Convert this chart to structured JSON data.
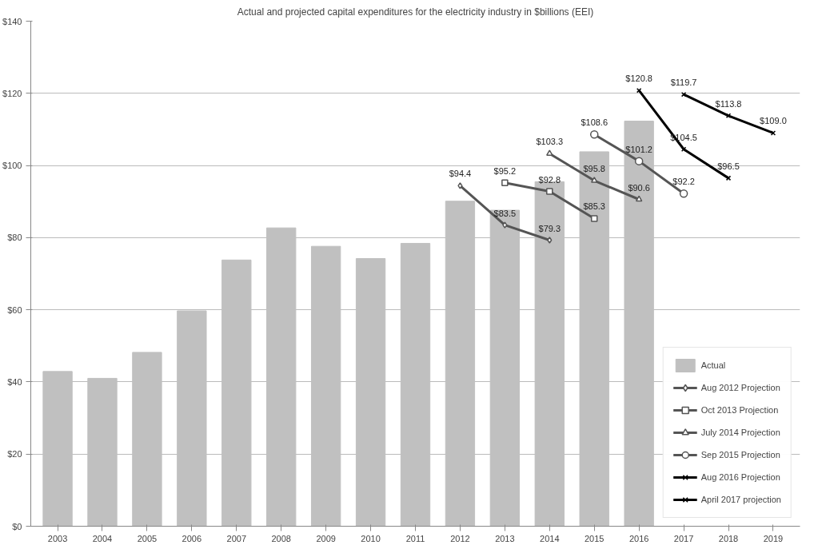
{
  "chart_data": {
    "type": "bar",
    "title": "Actual and projected capital expenditures for the electricity industry in $billions (EEI)",
    "categories": [
      "2003",
      "2004",
      "2005",
      "2006",
      "2007",
      "2008",
      "2009",
      "2010",
      "2011",
      "2012",
      "2013",
      "2014",
      "2015",
      "2016",
      "2017",
      "2018",
      "2019"
    ],
    "ylim": [
      0,
      140
    ],
    "yticks": [
      {
        "value": 0,
        "label": "$0"
      },
      {
        "value": 20,
        "label": "$20"
      },
      {
        "value": 40,
        "label": "$40"
      },
      {
        "value": 60,
        "label": "$60"
      },
      {
        "value": 80,
        "label": "$80"
      },
      {
        "value": 100,
        "label": "$100"
      },
      {
        "value": 120,
        "label": "$120"
      },
      {
        "value": 140,
        "label": "$140"
      }
    ],
    "grid": "y",
    "legend": "bottom right",
    "series": [
      {
        "name": "Actual",
        "color": "#c0c0c0",
        "values": [
          42.9,
          41,
          48.2,
          59.7,
          73.8,
          82.7,
          77.6,
          74.2,
          78.4,
          90.1,
          87.6,
          95.5,
          103.8,
          112.3,
          null,
          null,
          null
        ]
      },
      {
        "name": "Aug 2012 Projection",
        "type": "line",
        "color": "#555555",
        "marker": "diamond",
        "values": [
          null,
          null,
          null,
          null,
          null,
          null,
          null,
          null,
          null,
          94.4,
          83.5,
          79.3,
          null,
          null,
          null,
          null,
          null
        ],
        "value_labels": [
          null,
          null,
          null,
          null,
          null,
          null,
          null,
          null,
          null,
          "$94.4",
          "$83.5",
          "$79.3",
          null,
          null,
          null,
          null,
          null
        ]
      },
      {
        "name": "Oct 2013 Projection",
        "type": "line",
        "color": "#555555",
        "marker": "square",
        "values": [
          null,
          null,
          null,
          null,
          null,
          null,
          null,
          null,
          null,
          null,
          95.2,
          92.8,
          85.3,
          null,
          null,
          null,
          null
        ],
        "value_labels": [
          null,
          null,
          null,
          null,
          null,
          null,
          null,
          null,
          null,
          null,
          "$95.2",
          "$92.8",
          "$85.3",
          null,
          null,
          null,
          null
        ]
      },
      {
        "name": "July 2014 Projection",
        "type": "line",
        "color": "#555555",
        "marker": "triangle",
        "values": [
          null,
          null,
          null,
          null,
          null,
          null,
          null,
          null,
          null,
          null,
          null,
          103.3,
          95.8,
          90.6,
          null,
          null,
          null
        ],
        "value_labels": [
          null,
          null,
          null,
          null,
          null,
          null,
          null,
          null,
          null,
          null,
          null,
          "$103.3",
          "$95.8",
          "$90.6",
          null,
          null,
          null
        ]
      },
      {
        "name": "Sep 2015 Projection",
        "type": "line",
        "color": "#555555",
        "marker": "circle",
        "values": [
          null,
          null,
          null,
          null,
          null,
          null,
          null,
          null,
          null,
          null,
          null,
          null,
          108.6,
          101.2,
          92.2,
          null,
          null
        ],
        "value_labels": [
          null,
          null,
          null,
          null,
          null,
          null,
          null,
          null,
          null,
          null,
          null,
          null,
          "$108.6",
          "$101.2",
          "$92.2",
          null,
          null
        ]
      },
      {
        "name": "Aug 2016 Projection",
        "type": "line",
        "color": "#000000",
        "marker": "cross",
        "values": [
          null,
          null,
          null,
          null,
          null,
          null,
          null,
          null,
          null,
          null,
          null,
          null,
          null,
          120.8,
          104.5,
          96.5,
          null
        ],
        "value_labels": [
          null,
          null,
          null,
          null,
          null,
          null,
          null,
          null,
          null,
          null,
          null,
          null,
          null,
          "$120.8",
          "$104.5",
          "$96.5",
          null
        ]
      },
      {
        "name": "April 2017 projection",
        "type": "line",
        "color": "#000000",
        "marker": "cross",
        "values": [
          null,
          null,
          null,
          null,
          null,
          null,
          null,
          null,
          null,
          null,
          null,
          null,
          null,
          null,
          119.7,
          113.8,
          109.0
        ],
        "value_labels": [
          null,
          null,
          null,
          null,
          null,
          null,
          null,
          null,
          null,
          null,
          null,
          null,
          null,
          null,
          "$119.7",
          "$113.8",
          "$109.0"
        ]
      }
    ]
  }
}
